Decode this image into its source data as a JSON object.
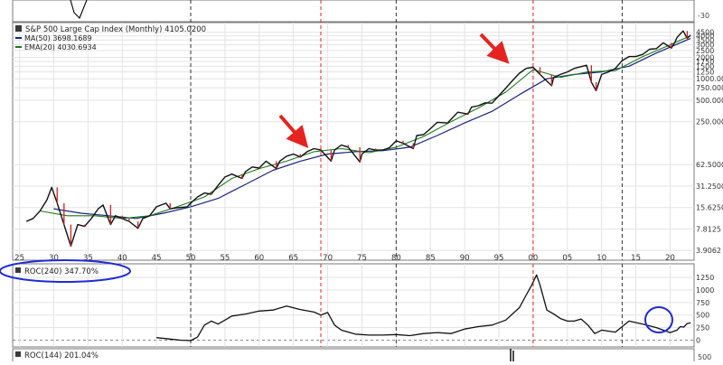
{
  "chart_data": [
    {
      "type": "line",
      "title": "S&P 500 Large Cap Index (Monthly) 4105.0200",
      "y_scale": "log",
      "ylim": [
        3.4,
        5800
      ],
      "xlim": [
        1924,
        2023.5
      ],
      "x_ticks": [
        "25",
        "30",
        "35",
        "40",
        "45",
        "50",
        "55",
        "60",
        "65",
        "70",
        "75",
        "80",
        "85",
        "90",
        "95",
        "00",
        "05",
        "10",
        "15",
        "20"
      ],
      "x_tick_years": [
        1925,
        1930,
        1935,
        1940,
        1945,
        1950,
        1955,
        1960,
        1965,
        1970,
        1975,
        1980,
        1985,
        1990,
        1995,
        2000,
        2005,
        2010,
        2015,
        2020
      ],
      "y_ticks": [
        "4500",
        "4000",
        "3500",
        "3000",
        "2500",
        "2000",
        "1750",
        "1500",
        "1250",
        "1000.000",
        "750.000",
        "500.0000",
        "250.0000",
        "62.5000",
        "31.2500",
        "15.6250",
        "7.8125",
        "3.9062"
      ],
      "y_tick_values": [
        4500,
        4000,
        3500,
        3000,
        2500,
        2000,
        1750,
        1500,
        1250,
        1000,
        750,
        500,
        250,
        62.5,
        31.25,
        15.625,
        7.8125,
        3.9062
      ],
      "legend": [
        {
          "label": "MA(50) 3698.1689",
          "color": "#1a237e"
        },
        {
          "label": "EMA(20) 4030.6934",
          "color": "#1b7a1b"
        }
      ],
      "series": [
        {
          "name": "S&P 500",
          "x": [
            1926,
            1927,
            1928,
            1929,
            1929.7,
            1930.5,
            1931.5,
            1932.5,
            1933.5,
            1934.5,
            1935.5,
            1936.5,
            1937.2,
            1938.3,
            1939,
            1940,
            1941,
            1942.3,
            1943,
            1944,
            1945,
            1946.4,
            1947,
            1948,
            1949.5,
            1950,
            1951,
            1952,
            1953,
            1954,
            1955,
            1956,
            1957.5,
            1958,
            1959,
            1960,
            1961,
            1962.5,
            1963,
            1964,
            1965,
            1966,
            1967,
            1968,
            1969,
            1970.5,
            1971,
            1972,
            1973,
            1974.7,
            1975,
            1976,
            1977,
            1978,
            1979,
            1980,
            1981,
            1982.5,
            1983,
            1984,
            1985,
            1986,
            1987.5,
            1988,
            1989,
            1990.5,
            1991,
            1992,
            1993,
            1994,
            1995,
            1996,
            1997,
            1998,
            1999,
            2000,
            2001,
            2002.7,
            2003,
            2004,
            2005,
            2006,
            2007.8,
            2008.5,
            2009.2,
            2010,
            2011,
            2012,
            2013,
            2014,
            2015,
            2016,
            2017,
            2018,
            2019,
            2020.2,
            2020.8,
            2021,
            2021.9,
            2022.5,
            2023
          ],
          "values": [
            10,
            11,
            14,
            20,
            30,
            18,
            9,
            4.5,
            9,
            8.5,
            11,
            15,
            17,
            9,
            12,
            11,
            10,
            8,
            11,
            12,
            16,
            18,
            15,
            15.5,
            16,
            18,
            22,
            25,
            24,
            32,
            42,
            46,
            40,
            50,
            58,
            56,
            70,
            55,
            70,
            82,
            88,
            80,
            95,
            105,
            100,
            70,
            100,
            118,
            110,
            68,
            88,
            105,
            100,
            100,
            108,
            135,
            125,
            105,
            160,
            165,
            200,
            245,
            240,
            270,
            340,
            320,
            400,
            420,
            460,
            455,
            580,
            740,
            950,
            1200,
            1400,
            1450,
            1150,
            800,
            1050,
            1150,
            1250,
            1400,
            1550,
            900,
            680,
            1150,
            1250,
            1400,
            1800,
            2050,
            2050,
            2200,
            2600,
            2650,
            3200,
            2700,
            3400,
            3800,
            4700,
            3700,
            4100
          ]
        },
        {
          "name": "MA(50)",
          "x": [
            1930,
            1934,
            1938,
            1942,
            1946,
            1950,
            1954,
            1958,
            1962,
            1966,
            1970,
            1974,
            1978,
            1982,
            1986,
            1990,
            1994,
            1998,
            2002,
            2006,
            2010,
            2014,
            2018,
            2023
          ],
          "values": [
            15,
            13,
            12,
            11,
            13,
            16,
            21,
            33,
            52,
            70,
            88,
            95,
            98,
            110,
            160,
            240,
            350,
            600,
            1000,
            1150,
            1250,
            1500,
            2300,
            3698
          ]
        },
        {
          "name": "EMA(20)",
          "x": [
            1928,
            1932,
            1936,
            1940,
            1944,
            1948,
            1952,
            1956,
            1960,
            1964,
            1968,
            1972,
            1976,
            1980,
            1984,
            1988,
            1992,
            1996,
            2000,
            2004,
            2008,
            2012,
            2016,
            2020,
            2023
          ],
          "values": [
            14,
            12,
            12,
            11,
            12,
            16,
            22,
            40,
            55,
            70,
            95,
            105,
            92,
            110,
            155,
            250,
            390,
            650,
            1350,
            1050,
            1250,
            1300,
            2050,
            3000,
            4030
          ]
        }
      ],
      "vlines_red_years": [
        1969,
        2000
      ],
      "vlines_black_years": [
        1950,
        1980,
        2013
      ],
      "annotations": [
        "red-arrow-1969",
        "red-arrow-2000"
      ]
    },
    {
      "type": "line",
      "title": "ROC(240) 347.70%",
      "ylim": [
        -100,
        1450
      ],
      "xlim": [
        1924,
        2023.5
      ],
      "y_ticks": [
        "1250",
        "1000",
        "750",
        "500",
        "250",
        "0"
      ],
      "y_tick_values": [
        1250,
        1000,
        750,
        500,
        250,
        0
      ],
      "series": [
        {
          "name": "ROC(240)",
          "x": [
            1945,
            1947,
            1948.5,
            1950,
            1951,
            1952,
            1953,
            1954,
            1955,
            1956,
            1958,
            1960,
            1962,
            1964,
            1966,
            1968,
            1969,
            1970,
            1971,
            1972,
            1974,
            1976,
            1978,
            1980,
            1982,
            1984,
            1986,
            1988,
            1990,
            1992,
            1994,
            1996,
            1998,
            1999,
            1999.8,
            2000.5,
            2001,
            2002,
            2003,
            2004,
            2005,
            2006,
            2007,
            2008,
            2009,
            2010,
            2012,
            2014,
            2016,
            2018,
            2020,
            2021,
            2021.5,
            2022,
            2022.5,
            2023
          ],
          "values": [
            50,
            20,
            0,
            -10,
            60,
            300,
            380,
            320,
            400,
            480,
            520,
            580,
            600,
            680,
            610,
            560,
            500,
            550,
            300,
            200,
            120,
            100,
            100,
            110,
            90,
            130,
            150,
            130,
            220,
            270,
            300,
            400,
            650,
            900,
            1100,
            1300,
            1100,
            600,
            520,
            430,
            380,
            380,
            420,
            300,
            130,
            200,
            160,
            380,
            320,
            250,
            150,
            200,
            270,
            260,
            330,
            347
          ]
        }
      ]
    },
    {
      "type": "line",
      "title": "ROC(144) 201.04%",
      "y_ticks": [
        "500"
      ],
      "y_tick_values": [
        500
      ]
    }
  ]
}
